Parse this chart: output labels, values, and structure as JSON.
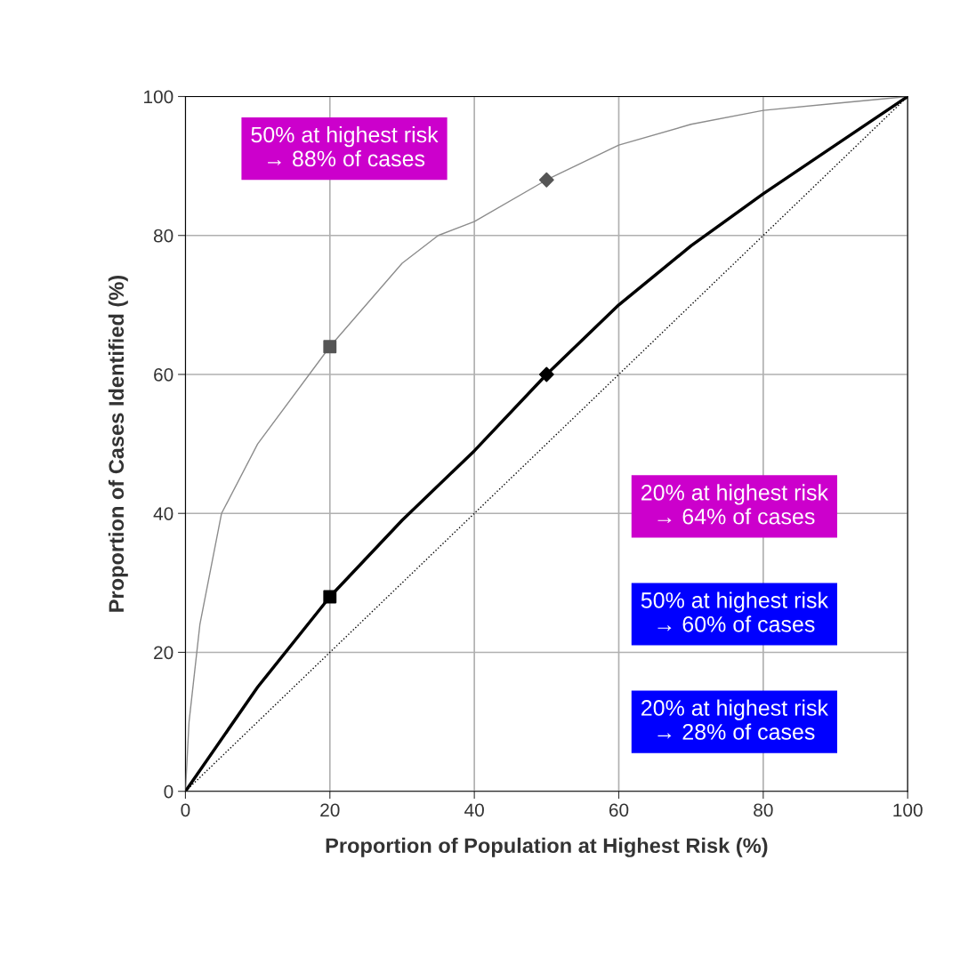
{
  "chart_data": {
    "type": "line",
    "xlabel": "Proportion of Population at Highest Risk (%)",
    "ylabel": "Proportion of Cases Identified (%)",
    "xlim": [
      0,
      100
    ],
    "ylim": [
      0,
      100
    ],
    "xticks": [
      0,
      20,
      40,
      60,
      80,
      100
    ],
    "yticks": [
      0,
      20,
      40,
      60,
      80,
      100
    ],
    "grid": true,
    "legend": false,
    "series": [
      {
        "color": "#8c8c8c",
        "x": [
          0,
          0.5,
          2,
          5,
          10,
          20,
          30,
          35,
          40,
          50,
          60,
          70,
          80,
          90,
          100
        ],
        "values": [
          0,
          10,
          24,
          40,
          50,
          64,
          76,
          80,
          82,
          88,
          93,
          96,
          98,
          99,
          100
        ]
      },
      {
        "color": "#000000",
        "x": [
          0,
          10,
          20,
          30,
          40,
          50,
          60,
          70,
          80,
          90,
          100
        ],
        "values": [
          0,
          15,
          28,
          39,
          49,
          60,
          70,
          78.5,
          86,
          93,
          100
        ]
      },
      {
        "color": "#000000",
        "line_style": "dotted",
        "x": [
          0,
          100
        ],
        "values": [
          0,
          100
        ]
      },
      {
        "type": "scatter",
        "color": "#555555",
        "marker": "square",
        "x": [
          20
        ],
        "values": [
          64
        ]
      },
      {
        "type": "scatter",
        "color": "#555555",
        "marker": "diamond",
        "x": [
          50
        ],
        "values": [
          88
        ]
      },
      {
        "type": "scatter",
        "color": "#000000",
        "marker": "square",
        "x": [
          20
        ],
        "values": [
          28
        ]
      },
      {
        "type": "scatter",
        "color": "#000000",
        "marker": "diamond",
        "x": [
          50
        ],
        "values": [
          60
        ]
      }
    ],
    "annotations": [
      "50% at highest risk\n→ 88% of cases",
      "20% at highest risk\n→ 64% of cases",
      "50% at highest risk\n→ 60% of cases",
      "20% at highest risk\n→ 28% of cases"
    ]
  }
}
